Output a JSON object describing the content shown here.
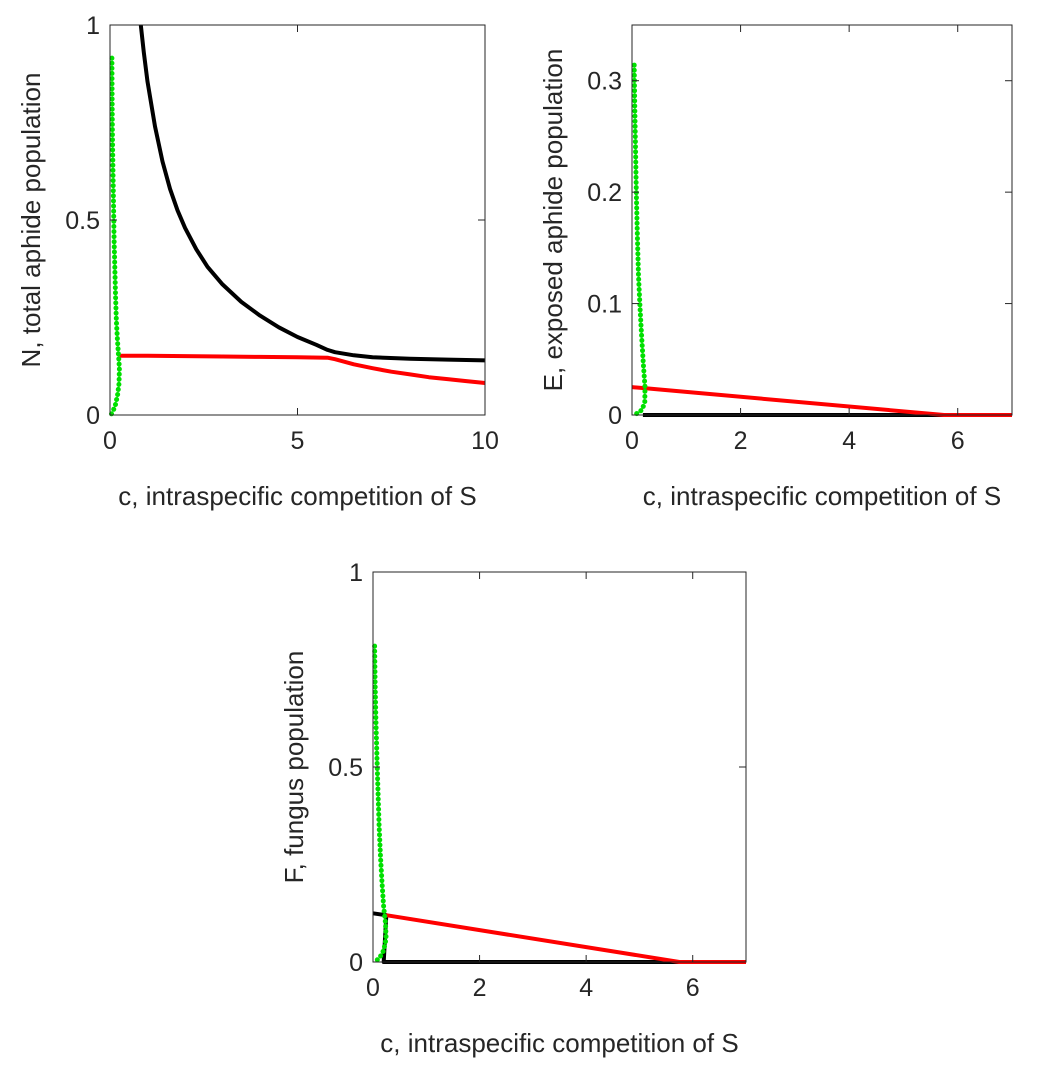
{
  "chart_data": [
    {
      "type": "line",
      "panel": "top-left",
      "xlabel": "c, intraspecific competition of S",
      "ylabel": "N, total aphide population",
      "xlim": [
        0,
        10
      ],
      "ylim": [
        0,
        1
      ],
      "xticks": [
        0,
        5,
        10
      ],
      "yticks": [
        0,
        0.5,
        1
      ],
      "xtick_labels": [
        "0",
        "5",
        "10"
      ],
      "ytick_labels": [
        "0",
        "0.5",
        "1"
      ],
      "grid": false,
      "series": [
        {
          "color": "#000000",
          "style": "solid",
          "points": [
            [
              0.82,
              1.0
            ],
            [
              0.9,
              0.93
            ],
            [
              1.0,
              0.855
            ],
            [
              1.2,
              0.74
            ],
            [
              1.4,
              0.65
            ],
            [
              1.6,
              0.58
            ],
            [
              1.8,
              0.525
            ],
            [
              2.0,
              0.48
            ],
            [
              2.3,
              0.425
            ],
            [
              2.6,
              0.38
            ],
            [
              3.0,
              0.335
            ],
            [
              3.5,
              0.29
            ],
            [
              4.0,
              0.255
            ],
            [
              4.5,
              0.225
            ],
            [
              5.0,
              0.2
            ],
            [
              5.5,
              0.18
            ],
            [
              5.8,
              0.167
            ],
            [
              6.0,
              0.161
            ],
            [
              6.5,
              0.153
            ],
            [
              7.0,
              0.148
            ],
            [
              8.0,
              0.144
            ],
            [
              9.0,
              0.142
            ],
            [
              10.0,
              0.14
            ]
          ]
        },
        {
          "color": "#ff0000",
          "style": "solid",
          "points": [
            [
              0.25,
              0.152
            ],
            [
              1.0,
              0.152
            ],
            [
              2.0,
              0.151
            ],
            [
              3.0,
              0.15
            ],
            [
              4.0,
              0.149
            ],
            [
              5.0,
              0.148
            ],
            [
              5.8,
              0.147
            ],
            [
              6.0,
              0.143
            ],
            [
              6.5,
              0.13
            ],
            [
              7.0,
              0.12
            ],
            [
              7.5,
              0.111
            ],
            [
              8.0,
              0.104
            ],
            [
              8.5,
              0.097
            ],
            [
              9.0,
              0.092
            ],
            [
              9.5,
              0.087
            ],
            [
              10.0,
              0.082
            ]
          ]
        },
        {
          "color": "#00e000",
          "style": "dotted",
          "points": [
            [
              0.05,
              0.915
            ],
            [
              0.055,
              0.82
            ],
            [
              0.065,
              0.72
            ],
            [
              0.08,
              0.62
            ],
            [
              0.095,
              0.53
            ],
            [
              0.11,
              0.45
            ],
            [
              0.13,
              0.37
            ],
            [
              0.15,
              0.3
            ],
            [
              0.17,
              0.24
            ],
            [
              0.2,
              0.19
            ],
            [
              0.23,
              0.15
            ],
            [
              0.25,
              0.12
            ],
            [
              0.24,
              0.08
            ],
            [
              0.2,
              0.05
            ],
            [
              0.14,
              0.025
            ],
            [
              0.08,
              0.01
            ],
            [
              0.04,
              0.003
            ]
          ]
        }
      ]
    },
    {
      "type": "line",
      "panel": "top-right",
      "xlabel": "c, intraspecific competition of S",
      "ylabel": "E, exposed aphide population",
      "xlim": [
        0,
        7
      ],
      "ylim": [
        0,
        0.35
      ],
      "xticks": [
        0,
        2,
        4,
        6
      ],
      "yticks": [
        0,
        0.1,
        0.2,
        0.3
      ],
      "xtick_labels": [
        "0",
        "2",
        "4",
        "6"
      ],
      "ytick_labels": [
        "0",
        "0.1",
        "0.2",
        "0.3"
      ],
      "grid": false,
      "series": [
        {
          "color": "#000000",
          "style": "solid",
          "points": [
            [
              0.2,
              0.0
            ],
            [
              5.75,
              0.0
            ]
          ]
        },
        {
          "color": "#ff0000",
          "style": "solid",
          "points": [
            [
              0.0,
              0.025
            ],
            [
              0.25,
              0.024
            ],
            [
              5.75,
              0.0
            ],
            [
              7.0,
              0.0
            ]
          ]
        },
        {
          "color": "#00e000",
          "style": "dotted",
          "points": [
            [
              0.04,
              0.314
            ],
            [
              0.05,
              0.28
            ],
            [
              0.065,
              0.24
            ],
            [
              0.08,
              0.2
            ],
            [
              0.1,
              0.16
            ],
            [
              0.12,
              0.125
            ],
            [
              0.15,
              0.095
            ],
            [
              0.18,
              0.068
            ],
            [
              0.21,
              0.045
            ],
            [
              0.24,
              0.025
            ],
            [
              0.235,
              0.012
            ],
            [
              0.19,
              0.005
            ],
            [
              0.12,
              0.002
            ],
            [
              0.05,
              0.0005
            ]
          ]
        }
      ]
    },
    {
      "type": "line",
      "panel": "bottom-center",
      "xlabel": "c, intraspecific competition of S",
      "ylabel": "F, fungus population",
      "xlim": [
        0,
        7
      ],
      "ylim": [
        0,
        1
      ],
      "xticks": [
        0,
        2,
        4,
        6
      ],
      "yticks": [
        0,
        0.5,
        1
      ],
      "xtick_labels": [
        "0",
        "2",
        "4",
        "6"
      ],
      "ytick_labels": [
        "0",
        "0.5",
        "1"
      ],
      "grid": false,
      "series": [
        {
          "color": "#000000",
          "style": "solid",
          "points": [
            [
              0.0,
              0.125
            ],
            [
              0.25,
              0.12
            ],
            [
              0.2,
              0.0
            ],
            [
              5.75,
              0.0
            ]
          ]
        },
        {
          "color": "#ff0000",
          "style": "solid",
          "points": [
            [
              0.25,
              0.12
            ],
            [
              5.75,
              0.0
            ],
            [
              7.0,
              0.0
            ]
          ]
        },
        {
          "color": "#00e000",
          "style": "dotted",
          "points": [
            [
              0.03,
              0.81
            ],
            [
              0.04,
              0.72
            ],
            [
              0.055,
              0.62
            ],
            [
              0.075,
              0.52
            ],
            [
              0.095,
              0.43
            ],
            [
              0.115,
              0.35
            ],
            [
              0.14,
              0.27
            ],
            [
              0.17,
              0.2
            ],
            [
              0.2,
              0.14
            ],
            [
              0.235,
              0.1
            ],
            [
              0.245,
              0.06
            ],
            [
              0.2,
              0.03
            ],
            [
              0.13,
              0.012
            ],
            [
              0.06,
              0.003
            ]
          ]
        }
      ]
    }
  ]
}
